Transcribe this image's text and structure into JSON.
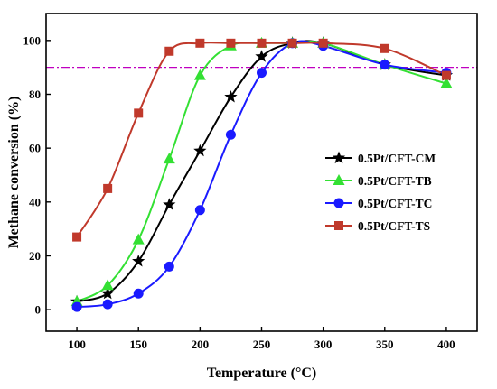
{
  "chart_data": {
    "type": "line",
    "xlabel": "Temperature (°C)",
    "ylabel": "Methane conversion (%)",
    "xlim": [
      75,
      425
    ],
    "ylim": [
      -8,
      110
    ],
    "x_ticks": [
      100,
      150,
      200,
      250,
      300,
      350,
      400
    ],
    "y_ticks": [
      0,
      20,
      40,
      60,
      80,
      100
    ],
    "reference_line": {
      "y": 90,
      "color": "#c000c0",
      "style": "dash-dot"
    },
    "legend_position": "center-right",
    "grid": false,
    "series": [
      {
        "name": "0.5Pt/CFT-CM",
        "color": "#000000",
        "marker": "star",
        "x": [
          100,
          125,
          150,
          175,
          200,
          225,
          250,
          275,
          300,
          350,
          400
        ],
        "y": [
          3,
          6,
          18,
          39,
          59,
          79,
          94,
          99,
          99,
          91,
          87
        ]
      },
      {
        "name": "0.5Pt/CFT-TB",
        "color": "#33e033",
        "marker": "triangle",
        "x": [
          100,
          125,
          150,
          175,
          200,
          225,
          250,
          275,
          300,
          350,
          400
        ],
        "y": [
          3,
          9,
          26,
          56,
          87,
          98,
          99,
          99,
          99,
          91,
          84
        ]
      },
      {
        "name": "0.5Pt/CFT-TC",
        "color": "#1a1aff",
        "marker": "circle",
        "x": [
          100,
          125,
          150,
          175,
          200,
          225,
          250,
          275,
          300,
          350,
          400
        ],
        "y": [
          1,
          2,
          6,
          16,
          37,
          65,
          88,
          99,
          98,
          91,
          88
        ]
      },
      {
        "name": "0.5Pt/CFT-TS",
        "color": "#c0392b",
        "marker": "square",
        "x": [
          100,
          125,
          150,
          175,
          200,
          225,
          250,
          275,
          300,
          350,
          400
        ],
        "y": [
          27,
          45,
          73,
          96,
          99,
          99,
          99,
          99,
          99,
          97,
          87
        ]
      }
    ]
  }
}
